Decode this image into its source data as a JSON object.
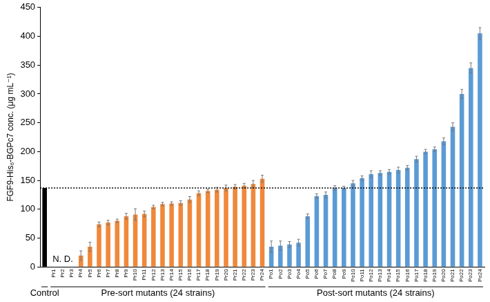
{
  "chart_data": {
    "type": "bar",
    "y_label": "FGF9-His₆-BGPc7 conc. (μg mL⁻¹)",
    "categories": [
      null,
      "Pr1",
      "Pr2",
      "Pr3",
      "Pr4",
      "Pr5",
      "Pr6",
      "Pr7",
      "Pr8",
      "Pr9",
      "Pr10",
      "Pr11",
      "Pr12",
      "Pr13",
      "Pr14",
      "Pr15",
      "Pr16",
      "Pr17",
      "Pr18",
      "Pr19",
      "Pr20",
      "Pr21",
      "Pr22",
      "Pr23",
      "Pr24",
      "Po1",
      "Po2",
      "Po3",
      "Po4",
      "Po5",
      "Po6",
      "Po7",
      "Po8",
      "Po9",
      "Po10",
      "Po11",
      "Po12",
      "Po13",
      "Po14",
      "Po15",
      "Po16",
      "Po17",
      "Po18",
      "Po19",
      "Po20",
      "Po21",
      "Po22",
      "Po23",
      "Po24"
    ],
    "values": [
      137,
      null,
      null,
      null,
      20,
      35,
      74,
      77,
      80,
      88,
      91,
      92,
      104,
      109,
      110,
      111,
      117,
      128,
      132,
      134,
      137,
      139,
      141,
      144,
      153,
      35,
      37,
      39,
      42,
      88,
      123,
      125,
      137,
      137,
      145,
      154,
      161,
      163,
      165,
      168,
      172,
      187,
      200,
      204,
      218,
      243,
      300,
      345,
      405
    ],
    "errors": [
      null,
      null,
      null,
      null,
      8,
      8,
      4,
      4,
      3,
      5,
      10,
      5,
      3,
      3,
      3,
      4,
      5,
      4,
      3,
      4,
      5,
      4,
      4,
      6,
      6,
      10,
      8,
      5,
      6,
      4,
      4,
      5,
      4,
      3,
      5,
      4,
      6,
      4,
      4,
      5,
      4,
      5,
      4,
      4,
      6,
      7,
      8,
      9,
      10
    ],
    "groups": [
      {
        "label": "Control",
        "count": 1,
        "color": "#000000"
      },
      {
        "label": "Pre-sort mutants (24 strains)",
        "count": 24,
        "color": "#f0883a"
      },
      {
        "label": "Post-sort mutants (24 strains)",
        "count": 24,
        "color": "#5b9bd5"
      }
    ],
    "hline": 137,
    "annotations": [
      "N. D."
    ],
    "ylim": [
      0,
      450
    ],
    "yticks": [
      0,
      50,
      100,
      150,
      200,
      250,
      300,
      350,
      400,
      450
    ],
    "grid": false
  }
}
